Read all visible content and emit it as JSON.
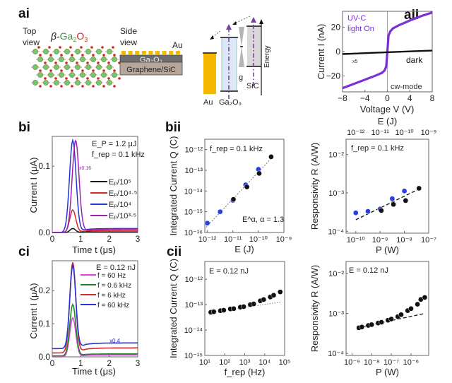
{
  "figure": {
    "panel_labels": {
      "ai": "ai",
      "aii": "aii",
      "bi": "bi",
      "bii": "bii",
      "ci": "ci",
      "cii": "cii"
    }
  },
  "schematic": {
    "top_view": [
      "Top",
      "view"
    ],
    "crystal_title_prefix": "β-",
    "crystal_title_ga": "Ga",
    "crystal_title_sub2": "2",
    "crystal_title_o": "O",
    "crystal_title_sub3": "3",
    "side_view": [
      "Side",
      "view"
    ],
    "au_label": "Au",
    "layer_ga2o3": "Ga₂O₃",
    "layer_substrate": "Graphene/SiC",
    "band_au": "Au",
    "band_ga2o3": "Ga₂O₃",
    "band_g": "g",
    "band_sic": "SiC",
    "energy_axis": "Energy",
    "colors": {
      "au": "#f5b800",
      "ga2o3_fill": "#dce8f5",
      "sic_fill": "#d8d8d8",
      "arrow": "#7a3fa0",
      "ga": "#7cc46a",
      "o": "#d9241c"
    }
  },
  "chart_data": [
    {
      "id": "aii",
      "type": "line",
      "xlabel": "Voltage V (V)",
      "ylabel": "Current I (nA)",
      "xlim": [
        -8,
        8
      ],
      "ylim": [
        -33,
        33
      ],
      "xticks": [
        -8,
        -4,
        0,
        4,
        8
      ],
      "xtick_labels": [
        "−8",
        "−4",
        "0",
        "4",
        "8"
      ],
      "yticks": [
        -20,
        0,
        20
      ],
      "ytick_labels": [
        "−20",
        "0",
        "20"
      ],
      "annotations": [
        "UV-C",
        "light On",
        "x5",
        "dark",
        "cw-mode"
      ],
      "series": [
        {
          "name": "UV-C light On",
          "color": "#7b2fd6",
          "x": [
            -8,
            -6,
            -4,
            -2,
            -1,
            -0.5,
            -0.2,
            0,
            0.2,
            0.5,
            1,
            2,
            4,
            6,
            8
          ],
          "y": [
            -30,
            -26.5,
            -23,
            -19.5,
            -17.5,
            -15.5,
            -12,
            0,
            13,
            16.5,
            19,
            21.5,
            25.5,
            29,
            32
          ]
        },
        {
          "name": "dark (x5)",
          "color": "#111111",
          "x": [
            -8,
            -4,
            0,
            4,
            8
          ],
          "y": [
            -2,
            -1.3,
            -0.5,
            0.2,
            0.8
          ]
        }
      ]
    },
    {
      "id": "bi",
      "type": "line",
      "xlabel": "Time t (μs)",
      "ylabel": "Current I (μA)",
      "xlim": [
        0,
        3
      ],
      "ylim": [
        0,
        0.145
      ],
      "xticks": [
        0,
        1,
        2,
        3
      ],
      "xtick_labels": [
        "0",
        "1",
        "2",
        "3"
      ],
      "yticks": [
        0,
        0.1
      ],
      "ytick_labels": [
        "0.0",
        "0.1"
      ],
      "annotations": [
        "E_P = 1.2 μJ",
        "f_rep = 0.1 kHz",
        "x0.16"
      ],
      "legend": [
        "E_P/10^5",
        "E_P/10^4.5",
        "E_P/10^4",
        "E_P/10^3.5"
      ],
      "series": [
        {
          "name": "E_P/10^5",
          "color": "#111111",
          "peak_t": 0.72,
          "peak": 0.006,
          "width": 0.2,
          "tail": 0.001
        },
        {
          "name": "E_P/10^4.5",
          "color": "#d42a2a",
          "peak_t": 0.72,
          "peak": 0.034,
          "width": 0.22,
          "tail": 0.003
        },
        {
          "name": "E_P/10^4",
          "color": "#2533d8",
          "peak_t": 0.72,
          "peak": 0.139,
          "width": 0.24,
          "tail": 0.006
        },
        {
          "name": "E_P/10^3.5",
          "color": "#9b22b0",
          "peak_t": 0.82,
          "peak": 0.139,
          "width": 0.25,
          "tail": 0.005
        }
      ]
    },
    {
      "id": "bii",
      "type": "scatter",
      "xlabel": "E (J)",
      "ylabel": "Integrated Current Q (C)",
      "xscale": "log",
      "yscale": "log",
      "xlim": [
        -12.1,
        -9
      ],
      "ylim": [
        -16,
        -11.5
      ],
      "xtick_labels": [
        "10⁻¹²",
        "10⁻¹¹",
        "10⁻¹⁰",
        "10⁻⁹"
      ],
      "xtick_exp": [
        -12,
        -11,
        -10,
        -9
      ],
      "ytick_labels": [
        "10⁻¹⁶",
        "10⁻¹⁵",
        "10⁻¹⁴",
        "10⁻¹³",
        "10⁻¹²"
      ],
      "ytick_exp": [
        -16,
        -15,
        -14,
        -13,
        -12
      ],
      "annotations": [
        "f_rep = 0.1 kHz",
        "E^α, α = 1.3"
      ],
      "fit": {
        "slope": 1.3,
        "x_exp": [
          -12.05,
          -9.5
        ],
        "y_exp_at_start": -15.75
      },
      "series": [
        {
          "name": "blue",
          "color": "#2a3fe0",
          "x_exp": [
            -12,
            -11.5,
            -11,
            -10.5,
            -10
          ],
          "y_exp": [
            -15.55,
            -15,
            -14.45,
            -13.7,
            -12.95
          ]
        },
        {
          "name": "black",
          "color": "#111111",
          "x_exp": [
            -10.98,
            -10.45,
            -9.97,
            -9.5
          ],
          "y_exp": [
            -14.4,
            -13.8,
            -13.15,
            -12.35
          ]
        }
      ]
    },
    {
      "id": "bii-right",
      "type": "scatter",
      "xlabel": "P (W)",
      "top_xlabel": "E (J)",
      "ylabel": "Responsivity R (A/W)",
      "xscale": "log",
      "yscale": "log",
      "xlim": [
        -10.4,
        -7
      ],
      "ylim": [
        -4.05,
        -1.6
      ],
      "xtick_labels": [
        "10⁻¹⁰",
        "10⁻⁹",
        "10⁻⁸",
        "10⁻⁷"
      ],
      "xtick_exp": [
        -10,
        -9,
        -8,
        -7
      ],
      "top_xtick_labels": [
        "10⁻¹²",
        "10⁻¹¹",
        "10⁻¹⁰",
        "10⁻⁹"
      ],
      "ytick_labels": [
        "10⁻⁴",
        "10⁻³",
        "10⁻²"
      ],
      "ytick_exp": [
        -4,
        -3,
        -2
      ],
      "annotations": [
        "f_rep = 0.1 kHz"
      ],
      "fit": {
        "x_exp": [
          -10,
          -7.4
        ],
        "y_exp": [
          -3.7,
          -2.9
        ]
      },
      "series": [
        {
          "name": "blue",
          "color": "#2a3fe0",
          "x_exp": [
            -10,
            -9.5,
            -9,
            -8.5,
            -8
          ],
          "y_exp": [
            -3.52,
            -3.48,
            -3.42,
            -3.15,
            -2.95
          ]
        },
        {
          "name": "black",
          "color": "#111111",
          "x_exp": [
            -8.95,
            -8.45,
            -7.95,
            -7.4
          ],
          "y_exp": [
            -3.46,
            -3.3,
            -3.2,
            -2.88
          ]
        }
      ]
    },
    {
      "id": "ci",
      "type": "line",
      "xlabel": "Time t (μs)",
      "ylabel": "Current I (μA)",
      "xlim": [
        0,
        3
      ],
      "ylim": [
        0,
        0.29
      ],
      "xticks": [
        0,
        1,
        2,
        3
      ],
      "xtick_labels": [
        "0",
        "1",
        "2",
        "3"
      ],
      "yticks": [
        0,
        0.1,
        0.2
      ],
      "ytick_labels": [
        "0.0",
        "0.1",
        "0.2"
      ],
      "annotations": [
        "E = 0.12 nJ",
        "x0.4"
      ],
      "legend": [
        "f_rep = 60 Hz",
        "f_rep = 0.6 kHz",
        "f_rep = 6 kHz",
        "f_rep = 60 kHz"
      ],
      "series": [
        {
          "name": "f_rep = 60 Hz",
          "color": "#e040e0",
          "base": 0.0,
          "peak": 0.118,
          "tail": 0.006
        },
        {
          "name": "f_rep = 0.6 kHz",
          "color": "#1e8a2a",
          "base": 0.003,
          "peak": 0.158,
          "tail": 0.009
        },
        {
          "name": "f_rep = 6 kHz",
          "color": "#d42a2a",
          "base": 0.012,
          "peak": 0.285,
          "tail": 0.027
        },
        {
          "name": "f_rep = 60 kHz",
          "color": "#2533d8",
          "base": 0.025,
          "peak": 0.275,
          "tail": 0.042
        }
      ]
    },
    {
      "id": "cii",
      "type": "scatter",
      "xlabel": "f_rep (Hz)",
      "ylabel": "Integrated Current Q (C)",
      "xscale": "log",
      "yscale": "log",
      "xlim": [
        1,
        5
      ],
      "ylim": [
        -15,
        -11.3
      ],
      "xtick_labels": [
        "10¹",
        "10²",
        "10³",
        "10⁴",
        "10⁵"
      ],
      "xtick_exp": [
        1,
        2,
        3,
        4,
        5
      ],
      "ytick_labels": [
        "10⁻¹⁵",
        "10⁻¹⁴",
        "10⁻¹³",
        "10⁻¹²"
      ],
      "ytick_exp": [
        -15,
        -14,
        -13,
        -12
      ],
      "annotations": [
        "E = 0.12 nJ"
      ],
      "fit": {
        "x_exp": [
          1.3,
          4.8
        ],
        "y_exp": [
          -13.3,
          -12.9
        ]
      },
      "series": [
        {
          "name": "black",
          "color": "#111111",
          "x_exp": [
            1.3,
            1.45,
            1.78,
            1.95,
            2.28,
            2.45,
            2.78,
            2.95,
            3.28,
            3.45,
            3.78,
            3.95,
            4.28,
            4.45,
            4.78
          ],
          "y_exp": [
            -13.3,
            -13.28,
            -13.24,
            -13.22,
            -13.17,
            -13.16,
            -13.1,
            -13.08,
            -13.0,
            -12.97,
            -12.85,
            -12.8,
            -12.7,
            -12.63,
            -12.5
          ]
        }
      ]
    },
    {
      "id": "cii-right",
      "type": "scatter",
      "xlabel": "P (W)",
      "ylabel": "Responsivity R (A/W)",
      "xscale": "log",
      "yscale": "log",
      "xlim": [
        -9.3,
        -5.1
      ],
      "ylim": [
        -4.05,
        -1.7
      ],
      "xtick_labels": [
        "10⁻⁹",
        "10⁻⁸",
        "10⁻⁷",
        "10⁻⁶"
      ],
      "xtick_exp": [
        -9,
        -8,
        -7,
        -6
      ],
      "ytick_labels": [
        "10⁻⁴",
        "10⁻³",
        "10⁻²"
      ],
      "ytick_exp": [
        -4,
        -3,
        -2
      ],
      "annotations": [
        "E = 0.12 nJ"
      ],
      "fit": {
        "x_exp": [
          -8.65,
          -5.3
        ],
        "y_exp": [
          -3.35,
          -3.0
        ]
      },
      "series": [
        {
          "name": "black",
          "color": "#111111",
          "x_exp": [
            -8.65,
            -8.5,
            -8.17,
            -8.0,
            -7.67,
            -7.5,
            -7.17,
            -7.0,
            -6.67,
            -6.5,
            -6.17,
            -6.0,
            -5.67,
            -5.5,
            -5.3
          ],
          "y_exp": [
            -3.36,
            -3.34,
            -3.3,
            -3.28,
            -3.24,
            -3.22,
            -3.17,
            -3.14,
            -3.08,
            -3.03,
            -2.93,
            -2.88,
            -2.77,
            -2.65,
            -2.6
          ]
        }
      ]
    }
  ]
}
